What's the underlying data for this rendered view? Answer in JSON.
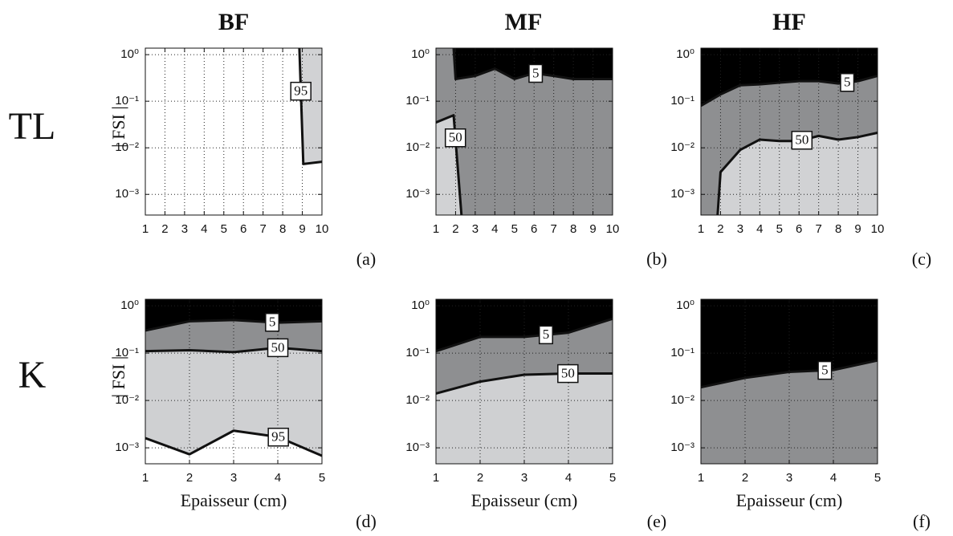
{
  "columns": [
    "BF",
    "MF",
    "HF"
  ],
  "rows": [
    "TL",
    "K"
  ],
  "chart_data": [
    {
      "type": "contour",
      "panel": "(a)",
      "ylabel": "| FSI |",
      "log_y": true,
      "grid": true,
      "background": "#ffffff",
      "xlim": [
        1,
        10
      ],
      "xticks": [
        1,
        2,
        3,
        4,
        5,
        6,
        7,
        8,
        9,
        10
      ],
      "ylim": [
        0.00036,
        1.38
      ],
      "yticks": [
        {
          "value": 1,
          "label": "10⁰"
        },
        {
          "value": 0.1,
          "label": "10⁻¹"
        },
        {
          "value": 0.01,
          "label": "10⁻²"
        },
        {
          "value": 0.001,
          "label": "10⁻³"
        }
      ],
      "series": [
        {
          "name": "95",
          "color": "#111111",
          "fill": "#d1d2d4",
          "fill_side": "above",
          "x": [
            8.85,
            9.05,
            10
          ],
          "values": [
            1.38,
            0.0045,
            0.005
          ]
        }
      ]
    },
    {
      "type": "contour",
      "panel": "(b)",
      "log_y": true,
      "grid": true,
      "background": "#8e8f91",
      "xlim": [
        1,
        10
      ],
      "xticks": [
        1,
        2,
        3,
        4,
        5,
        6,
        7,
        8,
        9,
        10
      ],
      "ylim": [
        0.00036,
        1.38
      ],
      "yticks": [
        {
          "value": 1,
          "label": "10⁰"
        },
        {
          "value": 0.1,
          "label": "10⁻¹"
        },
        {
          "value": 0.01,
          "label": "10⁻²"
        },
        {
          "value": 0.001,
          "label": "10⁻³"
        }
      ],
      "series": [
        {
          "name": "5",
          "color": "#111111",
          "fill": "#000000",
          "fill_side": "above",
          "x": [
            1.9,
            2,
            3,
            4,
            5,
            6,
            7,
            8,
            9,
            10
          ],
          "values": [
            1.38,
            0.3,
            0.35,
            0.5,
            0.3,
            0.4,
            0.35,
            0.3,
            0.3,
            0.3
          ]
        },
        {
          "name": "50",
          "color": "#111111",
          "fill": "#d1d2d4",
          "fill_side": "below",
          "x": [
            1,
            1.9,
            2.3
          ],
          "values": [
            0.035,
            0.05,
            0.00036
          ]
        }
      ]
    },
    {
      "type": "contour",
      "panel": "(c)",
      "log_y": true,
      "grid": true,
      "background": "#8e8f91",
      "xlim": [
        1,
        10
      ],
      "xticks": [
        1,
        2,
        3,
        4,
        5,
        6,
        7,
        8,
        9,
        10
      ],
      "ylim": [
        0.00036,
        1.38
      ],
      "yticks": [
        {
          "value": 1,
          "label": "10⁰"
        },
        {
          "value": 0.1,
          "label": "10⁻¹"
        },
        {
          "value": 0.01,
          "label": "10⁻²"
        },
        {
          "value": 0.001,
          "label": "10⁻³"
        }
      ],
      "series": [
        {
          "name": "5",
          "color": "#111111",
          "fill": "#000000",
          "fill_side": "above",
          "x": [
            1,
            2,
            3,
            4,
            5,
            6,
            7,
            8,
            9,
            10
          ],
          "values": [
            0.08,
            0.14,
            0.22,
            0.23,
            0.25,
            0.27,
            0.27,
            0.24,
            0.27,
            0.35
          ]
        },
        {
          "name": "50",
          "color": "#111111",
          "fill": "#d1d2d4",
          "fill_side": "below",
          "x": [
            1.85,
            2,
            3,
            4,
            5,
            6,
            7,
            8,
            9,
            10
          ],
          "values": [
            0.00036,
            0.003,
            0.009,
            0.015,
            0.014,
            0.014,
            0.018,
            0.015,
            0.017,
            0.021
          ]
        }
      ]
    },
    {
      "type": "contour",
      "panel": "(d)",
      "ylabel": "| FSI |",
      "xlabel": "Epaisseur (cm)",
      "log_y": true,
      "grid": true,
      "background": "#cfd0d2",
      "xlim": [
        1,
        5
      ],
      "xticks": [
        1,
        2,
        3,
        4,
        5
      ],
      "ylim": [
        0.00046,
        1.37
      ],
      "yticks": [
        {
          "value": 1,
          "label": "10⁰"
        },
        {
          "value": 0.1,
          "label": "10⁻¹"
        },
        {
          "value": 0.01,
          "label": "10⁻²"
        },
        {
          "value": 0.001,
          "label": "10⁻³"
        }
      ],
      "series": [
        {
          "name": "50",
          "color": "#111111",
          "fill": "#8e8f91",
          "fill_side": "above",
          "x": [
            1,
            2,
            3,
            4,
            5
          ],
          "values": [
            0.11,
            0.115,
            0.105,
            0.13,
            0.11
          ]
        },
        {
          "name": "5",
          "color": "#111111",
          "fill": "#000000",
          "fill_side": "above",
          "x": [
            1,
            2,
            3,
            4,
            5
          ],
          "values": [
            0.3,
            0.47,
            0.5,
            0.44,
            0.47
          ]
        },
        {
          "name": "95",
          "color": "#111111",
          "fill": "#ffffff",
          "fill_side": "below",
          "x": [
            1,
            2,
            3,
            4,
            5
          ],
          "values": [
            0.0016,
            0.00073,
            0.0023,
            0.0017,
            0.00068
          ]
        }
      ]
    },
    {
      "type": "contour",
      "panel": "(e)",
      "xlabel": "Epaisseur (cm)",
      "log_y": true,
      "grid": true,
      "background": "#cfd0d2",
      "xlim": [
        1,
        5
      ],
      "xticks": [
        1,
        2,
        3,
        4,
        5
      ],
      "ylim": [
        0.00046,
        1.37
      ],
      "yticks": [
        {
          "value": 1,
          "label": "10⁰"
        },
        {
          "value": 0.1,
          "label": "10⁻¹"
        },
        {
          "value": 0.01,
          "label": "10⁻²"
        },
        {
          "value": 0.001,
          "label": "10⁻³"
        }
      ],
      "series": [
        {
          "name": "50",
          "color": "#111111",
          "fill": "#8e8f91",
          "fill_side": "above",
          "x": [
            1,
            2,
            3,
            4,
            5
          ],
          "values": [
            0.014,
            0.025,
            0.035,
            0.037,
            0.037
          ]
        },
        {
          "name": "5",
          "color": "#111111",
          "fill": "#000000",
          "fill_side": "above",
          "x": [
            1,
            2,
            3,
            4,
            5
          ],
          "values": [
            0.11,
            0.22,
            0.22,
            0.27,
            0.53
          ]
        }
      ]
    },
    {
      "type": "contour",
      "panel": "(f)",
      "xlabel": "Epaisseur (cm)",
      "log_y": true,
      "grid": true,
      "background": "#8e8f91",
      "xlim": [
        1,
        5
      ],
      "xticks": [
        1,
        2,
        3,
        4,
        5
      ],
      "ylim": [
        0.00046,
        1.37
      ],
      "yticks": [
        {
          "value": 1,
          "label": "10⁰"
        },
        {
          "value": 0.1,
          "label": "10⁻¹"
        },
        {
          "value": 0.01,
          "label": "10⁻²"
        },
        {
          "value": 0.001,
          "label": "10⁻³"
        }
      ],
      "series": [
        {
          "name": "5",
          "color": "#111111",
          "fill": "#000000",
          "fill_side": "above",
          "x": [
            1,
            2,
            3,
            4,
            5
          ],
          "values": [
            0.019,
            0.03,
            0.04,
            0.044,
            0.07
          ]
        }
      ]
    }
  ]
}
